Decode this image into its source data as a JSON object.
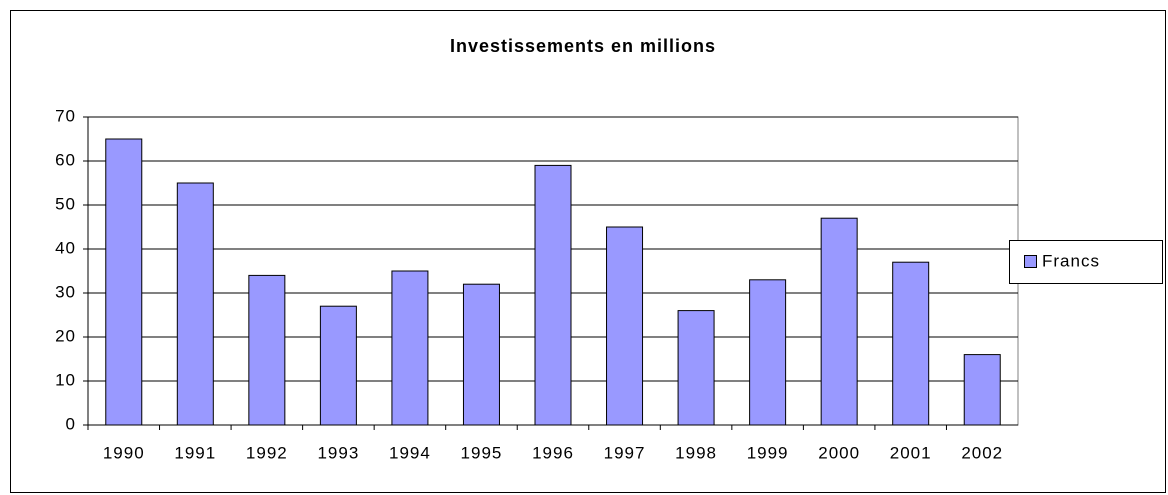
{
  "chart_data": {
    "type": "bar",
    "title": "Investissements en millions",
    "categories": [
      "1990",
      "1991",
      "1992",
      "1993",
      "1994",
      "1995",
      "1996",
      "1997",
      "1998",
      "1999",
      "2000",
      "2001",
      "2002"
    ],
    "series": [
      {
        "name": "Francs",
        "color": "#9999ff",
        "values": [
          65,
          55,
          34,
          27,
          35,
          32,
          59,
          45,
          26,
          33,
          47,
          37,
          16
        ]
      }
    ],
    "ylim": [
      0,
      70
    ],
    "yticks": [
      0,
      10,
      20,
      30,
      40,
      50,
      60,
      70
    ],
    "grid": true,
    "legend": "right"
  }
}
